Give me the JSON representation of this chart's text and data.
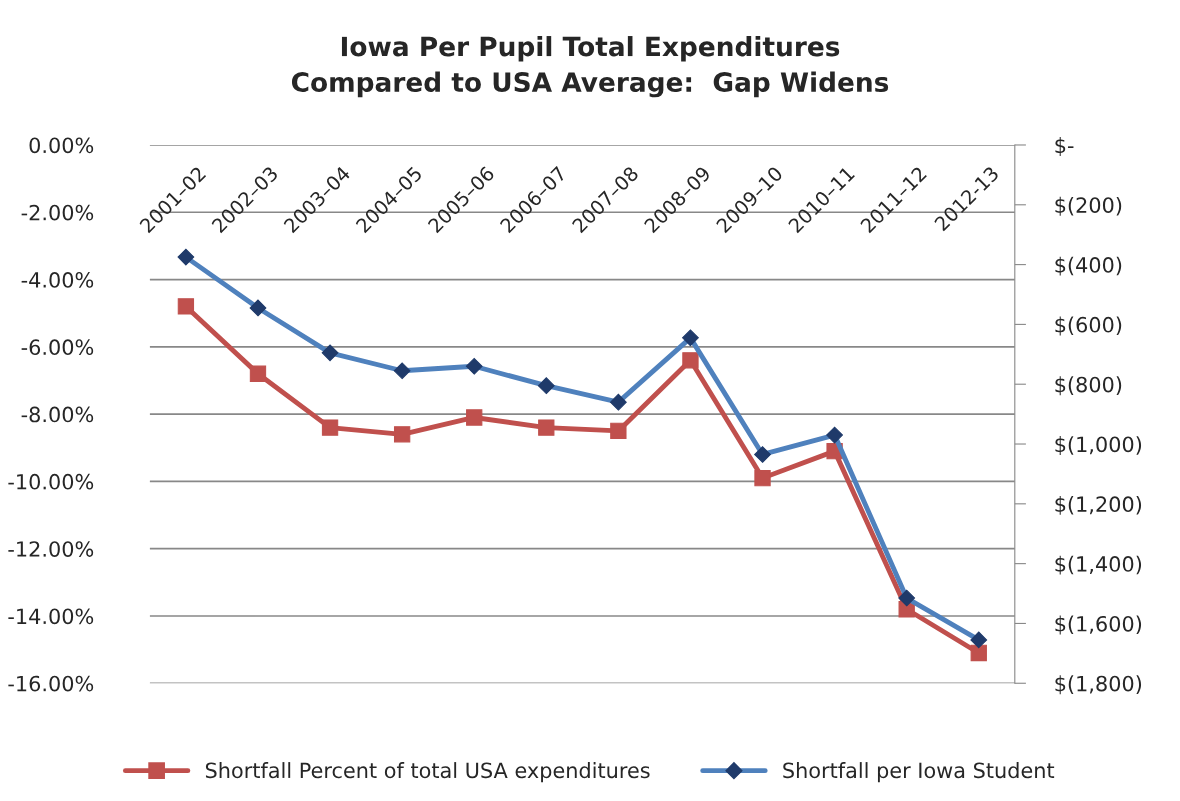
{
  "chart_data": {
    "type": "line",
    "title": "Iowa Per Pupil Total Expenditures\nCompared to USA Average:  Gap Widens",
    "categories": [
      "2001–02",
      "2002–03",
      "2003–04",
      "2004–05",
      "2005–06",
      "2006–07",
      "2007–08",
      "2008–09",
      "2009–10",
      "2010–11",
      "2011–12",
      "2012-13"
    ],
    "series": [
      {
        "name": "Shortfall Percent of total USA expenditures",
        "color": "#c0504d",
        "marker": "square",
        "values": [
          -4.8,
          -6.8,
          -8.4,
          -8.6,
          -8.1,
          -8.4,
          -8.5,
          -6.4,
          -9.9,
          -9.1,
          -13.8,
          -15.1
        ]
      },
      {
        "name": "Shortfall per Iowa Student",
        "color": "#4f81bd",
        "marker": "diamond",
        "axis": "y2",
        "values": [
          -375,
          -545,
          -695,
          -755,
          -740,
          -805,
          -860,
          -645,
          -1035,
          -970,
          -1515,
          -1655
        ]
      }
    ],
    "ylim": [
      -16,
      0
    ],
    "yticks": [
      {
        "value": 0,
        "label": "0.00%"
      },
      {
        "value": -2,
        "label": "-2.00%"
      },
      {
        "value": -4,
        "label": "-4.00%"
      },
      {
        "value": -6,
        "label": "-6.00%"
      },
      {
        "value": -8,
        "label": "-8.00%"
      },
      {
        "value": -10,
        "label": "-10.00%"
      },
      {
        "value": -12,
        "label": "-12.00%"
      },
      {
        "value": -14,
        "label": "-14.00%"
      },
      {
        "value": -16,
        "label": "-16.00%"
      }
    ],
    "y2lim": [
      -1800,
      0
    ],
    "y2ticks": [
      {
        "value": 0,
        "label": "$-"
      },
      {
        "value": -200,
        "label": "$(200)"
      },
      {
        "value": -400,
        "label": "$(400)"
      },
      {
        "value": -600,
        "label": "$(600)"
      },
      {
        "value": -800,
        "label": "$(800)"
      },
      {
        "value": -1000,
        "label": "$(1,000)"
      },
      {
        "value": -1200,
        "label": "$(1,200)"
      },
      {
        "value": -1400,
        "label": "$(1,400)"
      },
      {
        "value": -1600,
        "label": "$(1,600)"
      },
      {
        "value": -1800,
        "label": "$(1,800)"
      }
    ],
    "grid": "y",
    "legend": "bottom"
  }
}
